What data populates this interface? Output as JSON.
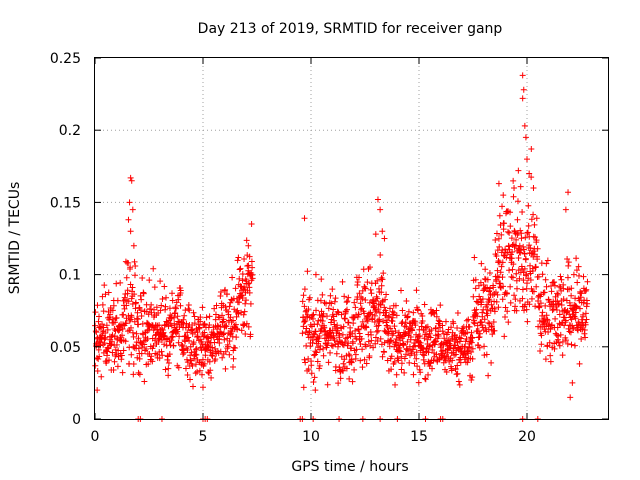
{
  "chart_data": {
    "type": "scatter",
    "title": "Day 213 of 2019, SRMTID for receiver ganp",
    "xlabel": "GPS time / hours",
    "ylabel": "SRMTID / TECUs",
    "xlim": [
      0,
      23.75
    ],
    "ylim": [
      0,
      0.25
    ],
    "xticks": [
      0,
      5,
      10,
      15,
      20
    ],
    "xtick_labels": [
      "0",
      "5",
      "10",
      "15",
      "20"
    ],
    "yticks": [
      0,
      0.05,
      0.1,
      0.15,
      0.2,
      0.25
    ],
    "ytick_labels": [
      "0",
      "0.05",
      "0.1",
      "0.15",
      "0.2",
      "0.25"
    ],
    "grid": true,
    "marker": "+",
    "color": "#ff0000",
    "zero_points_x": [
      2.0,
      2.1,
      3.1,
      5.0,
      5.1,
      5.2,
      9.5,
      9.6,
      10.1,
      11.3,
      12.4,
      13.2,
      14.0,
      15.3,
      16.0,
      16.1,
      19.8,
      20.5
    ],
    "series": [
      {
        "name": "SRMTID",
        "segments": [
          {
            "x_start": 0.0,
            "x_end": 1.3,
            "mean": 0.057,
            "spread": 0.018
          },
          {
            "x_start": 1.3,
            "x_end": 1.9,
            "mean": 0.075,
            "spread": 0.025
          },
          {
            "x_start": 1.9,
            "x_end": 4.0,
            "mean": 0.063,
            "spread": 0.02
          },
          {
            "x_start": 4.0,
            "x_end": 5.6,
            "mean": 0.053,
            "spread": 0.015
          },
          {
            "x_start": 5.6,
            "x_end": 6.6,
            "mean": 0.065,
            "spread": 0.018
          },
          {
            "x_start": 6.6,
            "x_end": 7.3,
            "mean": 0.09,
            "spread": 0.02
          },
          {
            "x_start": 9.6,
            "x_end": 12.0,
            "mean": 0.06,
            "spread": 0.018
          },
          {
            "x_start": 12.0,
            "x_end": 13.5,
            "mean": 0.07,
            "spread": 0.022
          },
          {
            "x_start": 13.5,
            "x_end": 16.0,
            "mean": 0.055,
            "spread": 0.015
          },
          {
            "x_start": 16.0,
            "x_end": 17.5,
            "mean": 0.05,
            "spread": 0.013
          },
          {
            "x_start": 17.5,
            "x_end": 18.5,
            "mean": 0.075,
            "spread": 0.02
          },
          {
            "x_start": 18.5,
            "x_end": 20.5,
            "mean": 0.11,
            "spread": 0.025
          },
          {
            "x_start": 20.5,
            "x_end": 22.8,
            "mean": 0.075,
            "spread": 0.02
          }
        ],
        "highlights": [
          {
            "x": 1.65,
            "y": 0.167
          },
          {
            "x": 1.7,
            "y": 0.165
          },
          {
            "x": 1.6,
            "y": 0.15
          },
          {
            "x": 1.75,
            "y": 0.145
          },
          {
            "x": 1.65,
            "y": 0.13
          },
          {
            "x": 1.8,
            "y": 0.12
          },
          {
            "x": 1.55,
            "y": 0.138
          },
          {
            "x": 9.7,
            "y": 0.139
          },
          {
            "x": 7.25,
            "y": 0.135
          },
          {
            "x": 7.1,
            "y": 0.12
          },
          {
            "x": 13.1,
            "y": 0.152
          },
          {
            "x": 13.2,
            "y": 0.145
          },
          {
            "x": 13.3,
            "y": 0.13
          },
          {
            "x": 13.0,
            "y": 0.128
          },
          {
            "x": 13.4,
            "y": 0.125
          },
          {
            "x": 19.8,
            "y": 0.238
          },
          {
            "x": 19.85,
            "y": 0.228
          },
          {
            "x": 19.8,
            "y": 0.222
          },
          {
            "x": 19.9,
            "y": 0.203
          },
          {
            "x": 19.95,
            "y": 0.195
          },
          {
            "x": 20.0,
            "y": 0.18
          },
          {
            "x": 20.1,
            "y": 0.17
          },
          {
            "x": 20.2,
            "y": 0.187
          },
          {
            "x": 19.6,
            "y": 0.172
          },
          {
            "x": 20.3,
            "y": 0.16
          },
          {
            "x": 19.4,
            "y": 0.16
          },
          {
            "x": 18.7,
            "y": 0.163
          },
          {
            "x": 18.9,
            "y": 0.155
          },
          {
            "x": 21.9,
            "y": 0.157
          },
          {
            "x": 21.8,
            "y": 0.145
          },
          {
            "x": 22.0,
            "y": 0.015
          },
          {
            "x": 22.1,
            "y": 0.025
          },
          {
            "x": 10.2,
            "y": 0.02
          },
          {
            "x": 0.1,
            "y": 0.02
          },
          {
            "x": 5.0,
            "y": 0.022
          },
          {
            "x": 18.2,
            "y": 0.03
          }
        ]
      }
    ]
  }
}
